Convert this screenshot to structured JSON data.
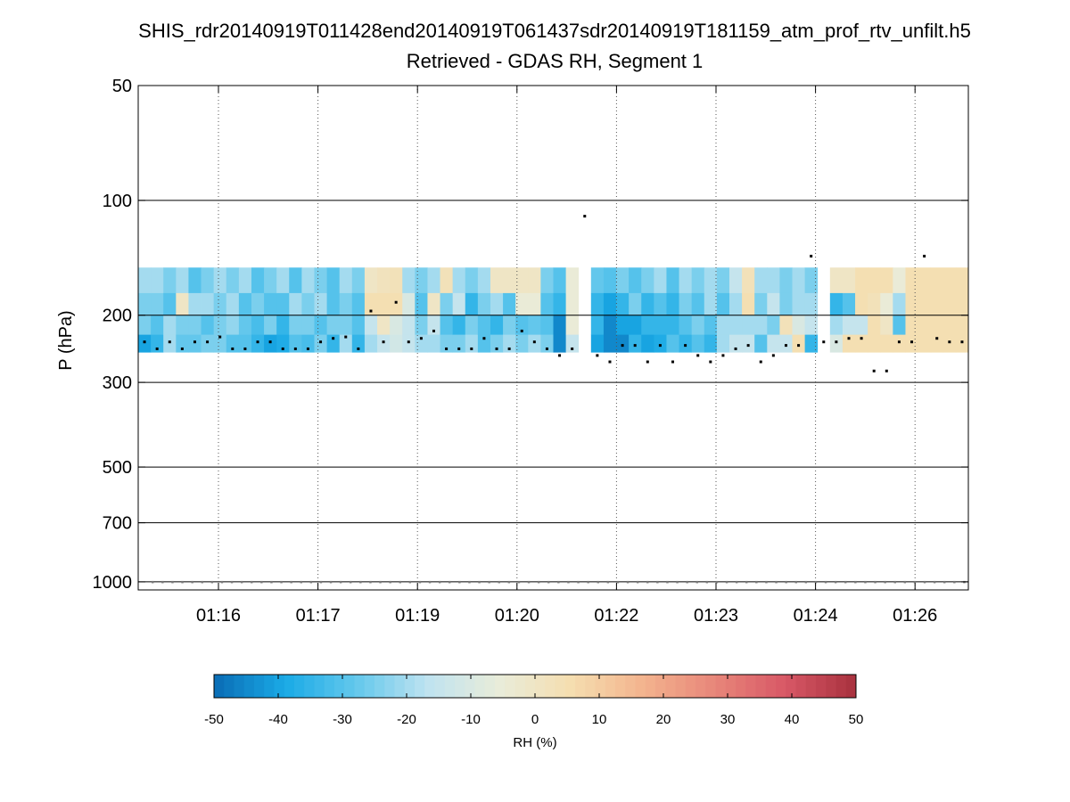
{
  "chart_data": {
    "type": "heatmap",
    "title": "SHIS_rdr20140919T011428end20140919T061437sdr20140919T181159_atm_prof_rtv_unfilt.h5",
    "subtitle": "Retrieved - GDAS RH, Segment 1",
    "ylabel": "P (hPa)",
    "y_scale": "log",
    "y_reversed": true,
    "ylim": [
      1050,
      50
    ],
    "y_ticks": [
      50,
      100,
      200,
      300,
      500,
      700,
      1000
    ],
    "y_tick_labels": [
      "50",
      "100",
      "200",
      "300",
      "500",
      "700",
      "1000"
    ],
    "x_tick_labels": [
      "01:16",
      "01:17",
      "01:19",
      "01:20",
      "01:22",
      "01:23",
      "01:24",
      "01:26"
    ],
    "grid": true,
    "colorbar": {
      "label": "RH (%)",
      "range": [
        -50,
        50
      ],
      "tick_labels": [
        "-50",
        "-40",
        "-30",
        "-20",
        "-10",
        "0",
        "10",
        "20",
        "30",
        "40",
        "50"
      ],
      "stops": [
        "#0a6cb4",
        "#1aaae6",
        "#64c8ec",
        "#bfe3f0",
        "#e9ecd9",
        "#f5deb0",
        "#f3b48e",
        "#e8877a",
        "#d85866",
        "#a8313e"
      ]
    },
    "surface_pressure_marker": 1000,
    "columns": [
      {
        "rh": [
          -20,
          -25,
          -25,
          -40
        ],
        "cloud_top": 235
      },
      {
        "rh": [
          -20,
          -25,
          -30,
          -35
        ],
        "cloud_top": 245
      },
      {
        "rh": [
          -25,
          -30,
          -20,
          -20
        ],
        "cloud_top": 235
      },
      {
        "rh": [
          -20,
          0,
          -25,
          -28
        ],
        "cloud_top": 245
      },
      {
        "rh": [
          -30,
          -20,
          -25,
          -28
        ],
        "cloud_top": 235
      },
      {
        "rh": [
          -25,
          -20,
          -30,
          -25
        ],
        "cloud_top": 235
      },
      {
        "rh": [
          -20,
          -25,
          -25,
          -25
        ],
        "cloud_top": 228
      },
      {
        "rh": [
          -25,
          -20,
          -22,
          -30
        ],
        "cloud_top": 245
      },
      {
        "rh": [
          -20,
          -30,
          -28,
          -30
        ],
        "cloud_top": 245
      },
      {
        "rh": [
          -30,
          -25,
          -32,
          -35
        ],
        "cloud_top": 235
      },
      {
        "rh": [
          -25,
          -30,
          -25,
          -40
        ],
        "cloud_top": 235
      },
      {
        "rh": [
          -20,
          -30,
          -35,
          -38
        ],
        "cloud_top": 245
      },
      {
        "rh": [
          -30,
          -20,
          -25,
          -30
        ],
        "cloud_top": 245
      },
      {
        "rh": [
          -20,
          -25,
          -25,
          -32
        ],
        "cloud_top": 245
      },
      {
        "rh": [
          -25,
          -20,
          -30,
          -25
        ],
        "cloud_top": 235
      },
      {
        "rh": [
          -30,
          -30,
          -25,
          -35
        ],
        "cloud_top": 230
      },
      {
        "rh": [
          -20,
          -25,
          -25,
          -20
        ],
        "cloud_top": 228
      },
      {
        "rh": [
          -25,
          -30,
          -30,
          -35
        ],
        "cloud_top": 245
      },
      {
        "rh": [
          0,
          5,
          -15,
          -20
        ],
        "cloud_top": 195
      },
      {
        "rh": [
          2,
          5,
          0,
          -15
        ],
        "cloud_top": 235
      },
      {
        "rh": [
          3,
          5,
          -10,
          -12
        ],
        "cloud_top": 185
      },
      {
        "rh": [
          -20,
          -10,
          -15,
          -15
        ],
        "cloud_top": 235
      },
      {
        "rh": [
          -25,
          -30,
          -25,
          -20
        ],
        "cloud_top": 230
      },
      {
        "rh": [
          -20,
          0,
          -15,
          -20
        ],
        "cloud_top": 220
      },
      {
        "rh": [
          3,
          -25,
          -30,
          -25
        ],
        "cloud_top": 245
      },
      {
        "rh": [
          -20,
          -15,
          -35,
          -25
        ],
        "cloud_top": 245
      },
      {
        "rh": [
          -25,
          -35,
          -25,
          -20
        ],
        "cloud_top": 245
      },
      {
        "rh": [
          -20,
          -25,
          -30,
          -30
        ],
        "cloud_top": 230
      },
      {
        "rh": [
          0,
          -20,
          -35,
          -25
        ],
        "cloud_top": 245
      },
      {
        "rh": [
          0,
          -30,
          -25,
          -20
        ],
        "cloud_top": 245
      },
      {
        "rh": [
          0,
          -5,
          -30,
          -25
        ],
        "cloud_top": 220
      },
      {
        "rh": [
          0,
          -5,
          -28,
          -20
        ],
        "cloud_top": 235
      },
      {
        "rh": [
          -25,
          -30,
          -30,
          -25
        ],
        "cloud_top": 245
      },
      {
        "rh": [
          -30,
          -35,
          -45,
          -45
        ],
        "cloud_top": 255
      },
      {
        "rh": [
          -5,
          -5,
          -5,
          -15
        ],
        "cloud_top": 245
      },
      {
        "rh": [
          null,
          null,
          null,
          null
        ],
        "cloud_top": 110
      },
      {
        "rh": [
          -28,
          -35,
          -35,
          -40
        ],
        "cloud_top": 255
      },
      {
        "rh": [
          -30,
          -40,
          -45,
          -45
        ],
        "cloud_top": 265
      },
      {
        "rh": [
          -25,
          -35,
          -40,
          -45
        ],
        "cloud_top": 240
      },
      {
        "rh": [
          -30,
          -25,
          -40,
          -35
        ],
        "cloud_top": 240
      },
      {
        "rh": [
          -25,
          -35,
          -35,
          -40
        ],
        "cloud_top": 265
      },
      {
        "rh": [
          -20,
          -30,
          -35,
          -38
        ],
        "cloud_top": 240
      },
      {
        "rh": [
          -30,
          -35,
          -35,
          -30
        ],
        "cloud_top": 265
      },
      {
        "rh": [
          -20,
          -25,
          -30,
          -35
        ],
        "cloud_top": 240
      },
      {
        "rh": [
          -25,
          -30,
          -25,
          -30
        ],
        "cloud_top": 255
      },
      {
        "rh": [
          -20,
          -20,
          -30,
          -35
        ],
        "cloud_top": 265
      },
      {
        "rh": [
          -25,
          -30,
          -20,
          -20
        ],
        "cloud_top": 255
      },
      {
        "rh": [
          -15,
          -20,
          -20,
          -15
        ],
        "cloud_top": 245
      },
      {
        "rh": [
          3,
          5,
          -20,
          -15
        ],
        "cloud_top": 240
      },
      {
        "rh": [
          -20,
          -25,
          -20,
          -30
        ],
        "cloud_top": 265
      },
      {
        "rh": [
          -20,
          -15,
          -25,
          -15
        ],
        "cloud_top": 255
      },
      {
        "rh": [
          -25,
          -25,
          3,
          -15
        ],
        "cloud_top": 240
      },
      {
        "rh": [
          -20,
          -20,
          -10,
          5
        ],
        "cloud_top": 240
      },
      {
        "rh": [
          -25,
          -20,
          -15,
          -35
        ],
        "cloud_top": 140
      },
      {
        "rh": [
          null,
          null,
          null,
          null
        ],
        "cloud_top": 235
      },
      {
        "rh": [
          0,
          -35,
          -20,
          -10
        ],
        "cloud_top": 235
      },
      {
        "rh": [
          0,
          -30,
          -15,
          5
        ],
        "cloud_top": 230
      },
      {
        "rh": [
          5,
          5,
          -15,
          5
        ],
        "cloud_top": 230
      },
      {
        "rh": [
          5,
          3,
          5,
          5
        ],
        "cloud_top": 280
      },
      {
        "rh": [
          5,
          -5,
          0,
          5
        ],
        "cloud_top": 280
      },
      {
        "rh": [
          -5,
          -20,
          -30,
          5
        ],
        "cloud_top": 235
      },
      {
        "rh": [
          5,
          5,
          5,
          5
        ],
        "cloud_top": 235
      },
      {
        "rh": [
          5,
          5,
          5,
          5
        ],
        "cloud_top": 140
      },
      {
        "rh": [
          5,
          5,
          5,
          5
        ],
        "cloud_top": 230
      },
      {
        "rh": [
          5,
          5,
          5,
          5
        ],
        "cloud_top": 235
      },
      {
        "rh": [
          5,
          5,
          5,
          5
        ],
        "cloud_top": 235
      }
    ]
  }
}
